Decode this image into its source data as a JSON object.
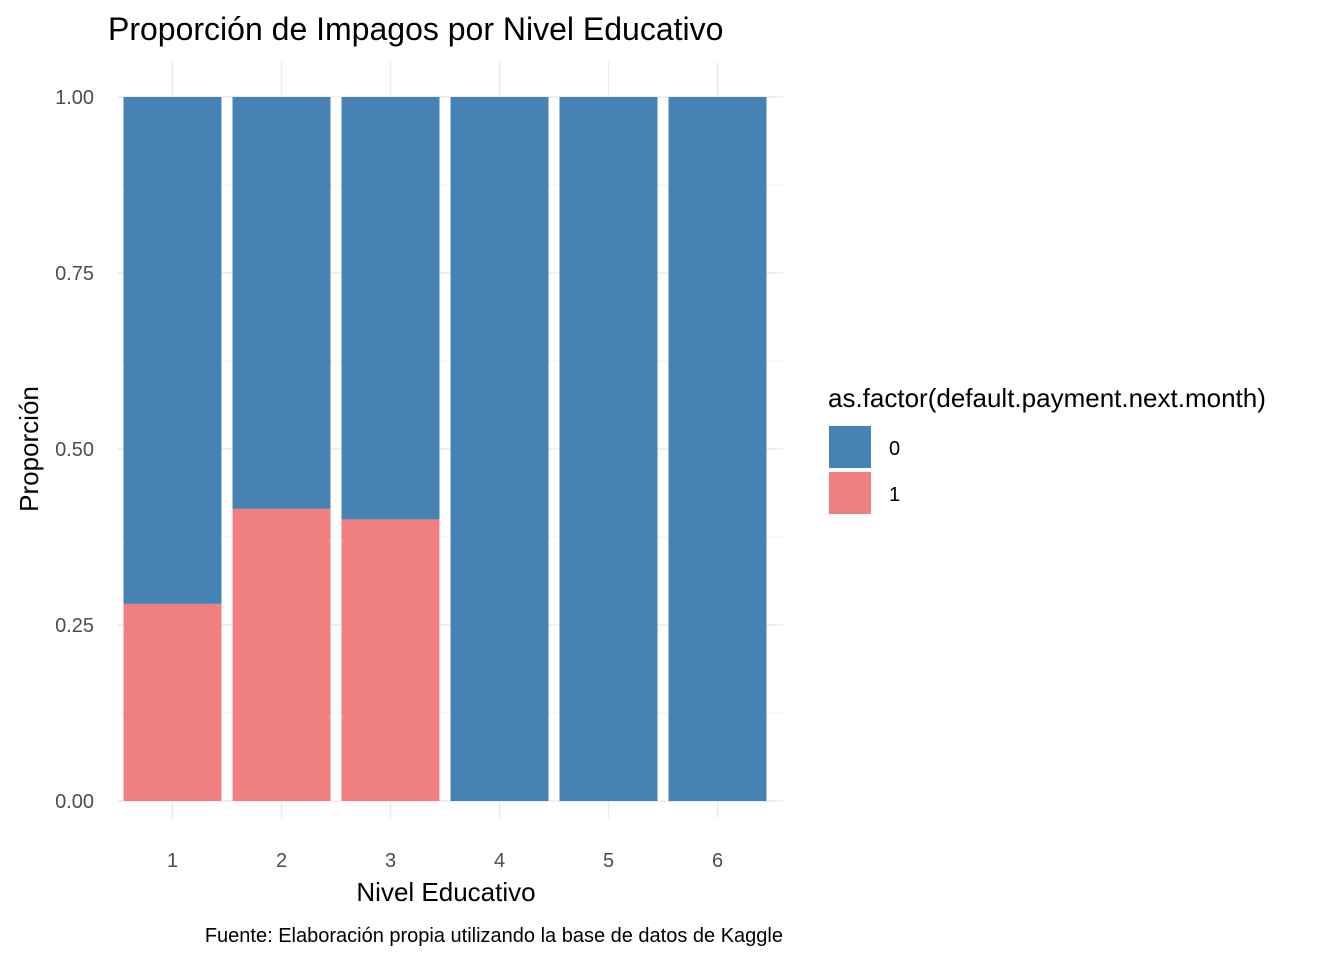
{
  "chart_data": {
    "type": "bar",
    "stacked": true,
    "title": "Proporción de Impagos por Nivel Educativo",
    "xlabel": "Nivel Educativo",
    "ylabel": "Proporción",
    "caption": "Fuente: Elaboración propia utilizando la base de datos de Kaggle",
    "categories": [
      "1",
      "2",
      "3",
      "4",
      "5",
      "6"
    ],
    "ylim": [
      0,
      1
    ],
    "yticks": [
      0,
      0.25,
      0.5,
      0.75,
      1.0
    ],
    "ytick_labels": [
      "0.00",
      "0.25",
      "0.50",
      "0.75",
      "1.00"
    ],
    "grid": true,
    "legend": {
      "title": "as.factor(default.payment.next.month)",
      "position": "right",
      "entries": [
        {
          "label": "0",
          "color": "#4682B4"
        },
        {
          "label": "1",
          "color": "#F08080"
        }
      ]
    },
    "series": [
      {
        "name": "0",
        "color": "#4682B4",
        "values": [
          0.72,
          0.585,
          0.6,
          1.0,
          1.0,
          1.0
        ]
      },
      {
        "name": "1",
        "color": "#F08080",
        "values": [
          0.28,
          0.415,
          0.4,
          0.0,
          0.0,
          0.0
        ]
      }
    ]
  }
}
